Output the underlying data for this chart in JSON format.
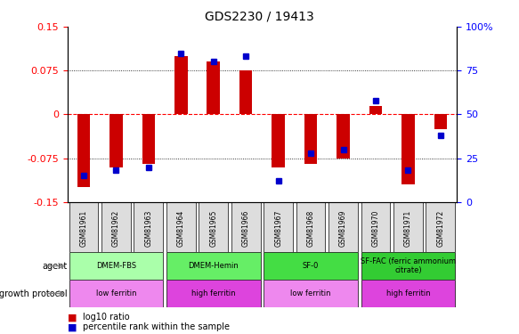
{
  "title": "GDS2230 / 19413",
  "samples": [
    "GSM81961",
    "GSM81962",
    "GSM81963",
    "GSM81964",
    "GSM81965",
    "GSM81966",
    "GSM81967",
    "GSM81968",
    "GSM81969",
    "GSM81970",
    "GSM81971",
    "GSM81972"
  ],
  "log10_ratio": [
    -0.125,
    -0.09,
    -0.085,
    0.1,
    0.09,
    0.075,
    -0.09,
    -0.085,
    -0.075,
    0.015,
    -0.12,
    -0.025
  ],
  "percentile_rank": [
    15,
    18,
    20,
    85,
    80,
    83,
    12,
    28,
    30,
    58,
    18,
    38
  ],
  "ylim": [
    -0.15,
    0.15
  ],
  "yticks_left": [
    -0.15,
    -0.075,
    0,
    0.075,
    0.15
  ],
  "yticks_right": [
    0,
    25,
    50,
    75,
    100
  ],
  "hlines": [
    -0.075,
    0,
    0.075
  ],
  "agent_groups": [
    {
      "label": "DMEM-FBS",
      "start": 0,
      "end": 3,
      "color": "#aaffaa"
    },
    {
      "label": "DMEM-Hemin",
      "start": 3,
      "end": 6,
      "color": "#66ee66"
    },
    {
      "label": "SF-0",
      "start": 6,
      "end": 9,
      "color": "#44dd44"
    },
    {
      "label": "SF-FAC (ferric ammonium\ncitrate)",
      "start": 9,
      "end": 12,
      "color": "#33cc33"
    }
  ],
  "growth_groups": [
    {
      "label": "low ferritin",
      "start": 0,
      "end": 3,
      "color": "#ee88ee"
    },
    {
      "label": "high ferritin",
      "start": 3,
      "end": 6,
      "color": "#dd44dd"
    },
    {
      "label": "low ferritin",
      "start": 6,
      "end": 9,
      "color": "#ee88ee"
    },
    {
      "label": "high ferritin",
      "start": 9,
      "end": 12,
      "color": "#dd44dd"
    }
  ],
  "bar_color": "#cc0000",
  "dot_color": "#0000cc",
  "bar_width": 0.4,
  "legend_items": [
    {
      "label": "log10 ratio",
      "color": "#cc0000"
    },
    {
      "label": "percentile rank within the sample",
      "color": "#0000cc"
    }
  ]
}
